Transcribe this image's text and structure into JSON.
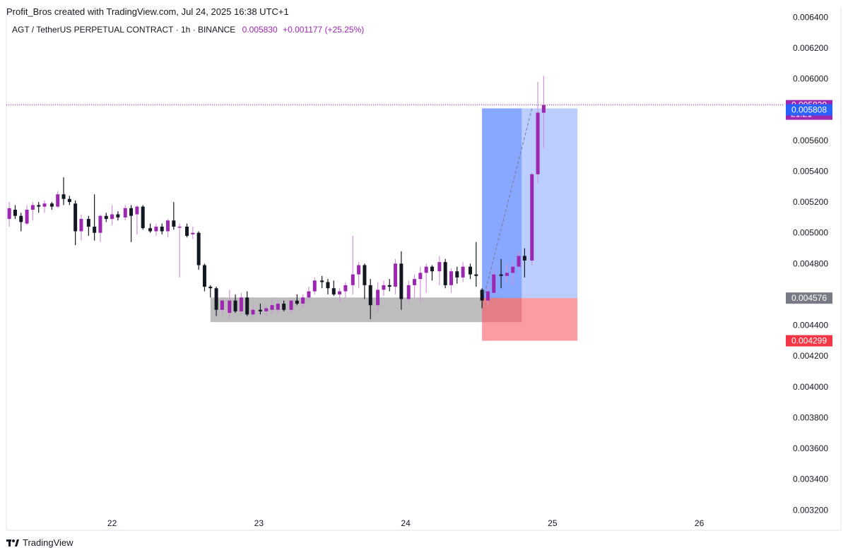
{
  "header": {
    "credit": "Profit_Bros created with TradingView.com, Jul 24, 2025 16:38 UTC+1"
  },
  "legend": {
    "symbol": "AGT / TetherUS PERPETUAL CONTRACT · 1h · BINANCE",
    "last": "0.005830",
    "change": "+0.001177 (+25.25%)"
  },
  "footer": {
    "brand": "TradingView",
    "logo_icon": "tradingview-logo-icon"
  },
  "colors": {
    "up": "#9c27b0",
    "down": "#131722",
    "wick_up": "#ce93d8",
    "profit_zone": "#9fb9ff",
    "loss_zone": "#f8838d",
    "demand_zone": "#b2b2b2",
    "last_price": "#9c27b0",
    "entry_label": "#787b86",
    "target_label": "#2962ff",
    "stop_label": "#f23645"
  },
  "chart_data": {
    "type": "candlestick",
    "title": "AGT / TetherUS PERPETUAL CONTRACT · 1h · BINANCE",
    "x_ticks": [
      "22",
      "23",
      "24",
      "25",
      "26"
    ],
    "y_ticks": [
      "0.006400",
      "0.006200",
      "0.006000",
      "0.005600",
      "0.005400",
      "0.005200",
      "0.005000",
      "0.004800",
      "0.004400",
      "0.004200",
      "0.004000",
      "0.003800",
      "0.003600",
      "0.003400",
      "0.003200"
    ],
    "ylim": [
      0.00316,
      0.00642
    ],
    "xlim_days": [
      21.28,
      26.57
    ],
    "grid": false,
    "last_price": 0.00583,
    "countdown": "21:21",
    "candles": [
      {
        "t": 21.3,
        "o": 0.00509,
        "h": 0.0052,
        "l": 0.00504,
        "c": 0.00516
      },
      {
        "t": 21.34,
        "o": 0.00515,
        "h": 0.00518,
        "l": 0.00509,
        "c": 0.00511
      },
      {
        "t": 21.38,
        "o": 0.00511,
        "h": 0.00513,
        "l": 0.00501,
        "c": 0.00507
      },
      {
        "t": 21.42,
        "o": 0.00506,
        "h": 0.00518,
        "l": 0.00505,
        "c": 0.00515
      },
      {
        "t": 21.46,
        "o": 0.00515,
        "h": 0.0052,
        "l": 0.00508,
        "c": 0.00518
      },
      {
        "t": 21.5,
        "o": 0.00518,
        "h": 0.0052,
        "l": 0.00513,
        "c": 0.00517
      },
      {
        "t": 21.54,
        "o": 0.00517,
        "h": 0.00521,
        "l": 0.00513,
        "c": 0.00519
      },
      {
        "t": 21.59,
        "o": 0.00519,
        "h": 0.0052,
        "l": 0.00515,
        "c": 0.00517
      },
      {
        "t": 21.63,
        "o": 0.00517,
        "h": 0.00527,
        "l": 0.00516,
        "c": 0.00525
      },
      {
        "t": 21.67,
        "o": 0.00525,
        "h": 0.00536,
        "l": 0.00518,
        "c": 0.00522
      },
      {
        "t": 21.71,
        "o": 0.00522,
        "h": 0.00524,
        "l": 0.00518,
        "c": 0.0052
      },
      {
        "t": 21.75,
        "o": 0.00519,
        "h": 0.00521,
        "l": 0.00492,
        "c": 0.00501
      },
      {
        "t": 21.79,
        "o": 0.00501,
        "h": 0.00512,
        "l": 0.00495,
        "c": 0.00509
      },
      {
        "t": 21.84,
        "o": 0.00509,
        "h": 0.00511,
        "l": 0.00498,
        "c": 0.00504
      },
      {
        "t": 21.88,
        "o": 0.00504,
        "h": 0.00525,
        "l": 0.00495,
        "c": 0.005
      },
      {
        "t": 21.92,
        "o": 0.005,
        "h": 0.00512,
        "l": 0.00494,
        "c": 0.00511
      },
      {
        "t": 21.96,
        "o": 0.00511,
        "h": 0.00513,
        "l": 0.00507,
        "c": 0.00509
      },
      {
        "t": 22.0,
        "o": 0.00509,
        "h": 0.00518,
        "l": 0.00505,
        "c": 0.00512
      },
      {
        "t": 22.04,
        "o": 0.00512,
        "h": 0.00514,
        "l": 0.00508,
        "c": 0.0051
      },
      {
        "t": 22.09,
        "o": 0.0051,
        "h": 0.00518,
        "l": 0.00508,
        "c": 0.00516
      },
      {
        "t": 22.13,
        "o": 0.00516,
        "h": 0.00518,
        "l": 0.00494,
        "c": 0.00511
      },
      {
        "t": 22.17,
        "o": 0.00512,
        "h": 0.00518,
        "l": 0.00499,
        "c": 0.00517
      },
      {
        "t": 22.21,
        "o": 0.00517,
        "h": 0.00518,
        "l": 0.00502,
        "c": 0.00503
      },
      {
        "t": 22.26,
        "o": 0.00503,
        "h": 0.00506,
        "l": 0.005,
        "c": 0.00501
      },
      {
        "t": 22.3,
        "o": 0.00501,
        "h": 0.00506,
        "l": 0.00498,
        "c": 0.00504
      },
      {
        "t": 22.34,
        "o": 0.00504,
        "h": 0.00506,
        "l": 0.00499,
        "c": 0.00501
      },
      {
        "t": 22.38,
        "o": 0.00501,
        "h": 0.00509,
        "l": 0.00497,
        "c": 0.00508
      },
      {
        "t": 22.42,
        "o": 0.00508,
        "h": 0.0052,
        "l": 0.00502,
        "c": 0.00504
      },
      {
        "t": 22.46,
        "o": 0.00504,
        "h": 0.00506,
        "l": 0.00471,
        "c": 0.00504
      },
      {
        "t": 22.51,
        "o": 0.00504,
        "h": 0.00506,
        "l": 0.00497,
        "c": 0.00498
      },
      {
        "t": 22.55,
        "o": 0.00499,
        "h": 0.00504,
        "l": 0.00496,
        "c": 0.005
      },
      {
        "t": 22.59,
        "o": 0.005,
        "h": 0.00501,
        "l": 0.00476,
        "c": 0.00479
      },
      {
        "t": 22.63,
        "o": 0.00479,
        "h": 0.0048,
        "l": 0.00462,
        "c": 0.00465
      },
      {
        "t": 22.67,
        "o": 0.00465,
        "h": 0.00466,
        "l": 0.00458,
        "c": 0.00464
      },
      {
        "t": 22.71,
        "o": 0.00464,
        "h": 0.00465,
        "l": 0.00446,
        "c": 0.0045
      },
      {
        "t": 22.75,
        "o": 0.0045,
        "h": 0.00458,
        "l": 0.00447,
        "c": 0.00456
      },
      {
        "t": 22.8,
        "o": 0.00448,
        "h": 0.00463,
        "l": 0.00444,
        "c": 0.00456
      },
      {
        "t": 22.84,
        "o": 0.00456,
        "h": 0.0046,
        "l": 0.00448,
        "c": 0.00449
      },
      {
        "t": 22.88,
        "o": 0.00449,
        "h": 0.00461,
        "l": 0.00447,
        "c": 0.00458
      },
      {
        "t": 22.92,
        "o": 0.00458,
        "h": 0.00462,
        "l": 0.00446,
        "c": 0.00447
      },
      {
        "t": 22.96,
        "o": 0.00447,
        "h": 0.00453,
        "l": 0.00445,
        "c": 0.0045
      },
      {
        "t": 23.01,
        "o": 0.0045,
        "h": 0.00454,
        "l": 0.00447,
        "c": 0.00449
      },
      {
        "t": 23.05,
        "o": 0.00449,
        "h": 0.00453,
        "l": 0.00446,
        "c": 0.00451
      },
      {
        "t": 23.09,
        "o": 0.0045,
        "h": 0.00457,
        "l": 0.00448,
        "c": 0.00453
      },
      {
        "t": 23.13,
        "o": 0.0045,
        "h": 0.00456,
        "l": 0.00447,
        "c": 0.00454
      },
      {
        "t": 23.17,
        "o": 0.00454,
        "h": 0.00456,
        "l": 0.00449,
        "c": 0.0045
      },
      {
        "t": 23.22,
        "o": 0.0045,
        "h": 0.00457,
        "l": 0.00448,
        "c": 0.00456
      },
      {
        "t": 23.26,
        "o": 0.00456,
        "h": 0.0046,
        "l": 0.00453,
        "c": 0.00454
      },
      {
        "t": 23.3,
        "o": 0.00454,
        "h": 0.0046,
        "l": 0.00451,
        "c": 0.00458
      },
      {
        "t": 23.34,
        "o": 0.00458,
        "h": 0.00465,
        "l": 0.00456,
        "c": 0.00462
      },
      {
        "t": 23.38,
        "o": 0.00462,
        "h": 0.00471,
        "l": 0.0046,
        "c": 0.00469
      },
      {
        "t": 23.43,
        "o": 0.00469,
        "h": 0.00472,
        "l": 0.00464,
        "c": 0.00468
      },
      {
        "t": 23.47,
        "o": 0.00468,
        "h": 0.0047,
        "l": 0.0046,
        "c": 0.00464
      },
      {
        "t": 23.51,
        "o": 0.00464,
        "h": 0.00469,
        "l": 0.00459,
        "c": 0.0046
      },
      {
        "t": 23.55,
        "o": 0.0046,
        "h": 0.00464,
        "l": 0.00455,
        "c": 0.00462
      },
      {
        "t": 23.59,
        "o": 0.00462,
        "h": 0.00468,
        "l": 0.00458,
        "c": 0.00466
      },
      {
        "t": 23.64,
        "o": 0.00466,
        "h": 0.00498,
        "l": 0.0046,
        "c": 0.00473
      },
      {
        "t": 23.68,
        "o": 0.00473,
        "h": 0.00481,
        "l": 0.00464,
        "c": 0.00479
      },
      {
        "t": 23.72,
        "o": 0.00479,
        "h": 0.0048,
        "l": 0.00457,
        "c": 0.00466
      },
      {
        "t": 23.76,
        "o": 0.00466,
        "h": 0.0047,
        "l": 0.00444,
        "c": 0.00453
      },
      {
        "t": 23.81,
        "o": 0.00453,
        "h": 0.00468,
        "l": 0.00449,
        "c": 0.00463
      },
      {
        "t": 23.85,
        "o": 0.00463,
        "h": 0.00469,
        "l": 0.00459,
        "c": 0.00466
      },
      {
        "t": 23.89,
        "o": 0.00466,
        "h": 0.0047,
        "l": 0.00462,
        "c": 0.00465
      },
      {
        "t": 23.93,
        "o": 0.00465,
        "h": 0.00483,
        "l": 0.0046,
        "c": 0.0048
      },
      {
        "t": 23.97,
        "o": 0.0048,
        "h": 0.00488,
        "l": 0.0045,
        "c": 0.00457
      },
      {
        "t": 24.02,
        "o": 0.00457,
        "h": 0.00469,
        "l": 0.00454,
        "c": 0.00466
      },
      {
        "t": 24.06,
        "o": 0.00466,
        "h": 0.00473,
        "l": 0.00458,
        "c": 0.0047
      },
      {
        "t": 24.1,
        "o": 0.0047,
        "h": 0.00478,
        "l": 0.00455,
        "c": 0.00474
      },
      {
        "t": 24.14,
        "o": 0.00474,
        "h": 0.0048,
        "l": 0.00461,
        "c": 0.00478
      },
      {
        "t": 24.18,
        "o": 0.00478,
        "h": 0.00479,
        "l": 0.00469,
        "c": 0.00475
      },
      {
        "t": 24.23,
        "o": 0.00475,
        "h": 0.00485,
        "l": 0.00466,
        "c": 0.00481
      },
      {
        "t": 24.27,
        "o": 0.00481,
        "h": 0.00483,
        "l": 0.00464,
        "c": 0.00466
      },
      {
        "t": 24.31,
        "o": 0.00466,
        "h": 0.00477,
        "l": 0.00461,
        "c": 0.00475
      },
      {
        "t": 24.35,
        "o": 0.00475,
        "h": 0.00478,
        "l": 0.00467,
        "c": 0.00471
      },
      {
        "t": 24.39,
        "o": 0.00471,
        "h": 0.00481,
        "l": 0.00468,
        "c": 0.00478
      },
      {
        "t": 24.44,
        "o": 0.00478,
        "h": 0.0048,
        "l": 0.0047,
        "c": 0.00473
      },
      {
        "t": 24.48,
        "o": 0.00473,
        "h": 0.00494,
        "l": 0.00465,
        "c": 0.00472
      },
      {
        "t": 24.52,
        "o": 0.00463,
        "h": 0.00464,
        "l": 0.00451,
        "c": 0.00456
      },
      {
        "t": 24.56,
        "o": 0.00456,
        "h": 0.00465,
        "l": 0.00453,
        "c": 0.00462
      },
      {
        "t": 24.6,
        "o": 0.00461,
        "h": 0.00476,
        "l": 0.0046,
        "c": 0.00473
      },
      {
        "t": 24.65,
        "o": 0.00473,
        "h": 0.00483,
        "l": 0.00464,
        "c": 0.00472
      },
      {
        "t": 24.69,
        "o": 0.00472,
        "h": 0.0048,
        "l": 0.00468,
        "c": 0.00474
      },
      {
        "t": 24.73,
        "o": 0.00474,
        "h": 0.00481,
        "l": 0.00466,
        "c": 0.00478
      },
      {
        "t": 24.77,
        "o": 0.00478,
        "h": 0.00488,
        "l": 0.00476,
        "c": 0.00485
      },
      {
        "t": 24.81,
        "o": 0.00485,
        "h": 0.0049,
        "l": 0.00471,
        "c": 0.00482
      },
      {
        "t": 24.86,
        "o": 0.00482,
        "h": 0.00539,
        "l": 0.00479,
        "c": 0.00538
      },
      {
        "t": 24.9,
        "o": 0.00538,
        "h": 0.00598,
        "l": 0.00532,
        "c": 0.00578
      },
      {
        "t": 24.94,
        "o": 0.00578,
        "h": 0.00602,
        "l": 0.00555,
        "c": 0.00583
      }
    ],
    "demand_zone": {
      "t_start": 22.67,
      "t_end": 24.79,
      "top": 0.00458,
      "bottom": 0.00442
    },
    "position": {
      "t_start": 24.52,
      "t_end": 25.17,
      "entry": 0.004576,
      "target": 0.005808,
      "stop": 0.004299,
      "filled_until": 24.79
    },
    "price_labels": [
      {
        "text": "0.005830",
        "value": 0.00583,
        "role": "last"
      },
      {
        "text": "0.005808",
        "value": 0.005808,
        "role": "target"
      },
      {
        "text": "0.004576",
        "value": 0.004576,
        "role": "entry"
      },
      {
        "text": "0.004299",
        "value": 0.004299,
        "role": "stop"
      }
    ]
  }
}
